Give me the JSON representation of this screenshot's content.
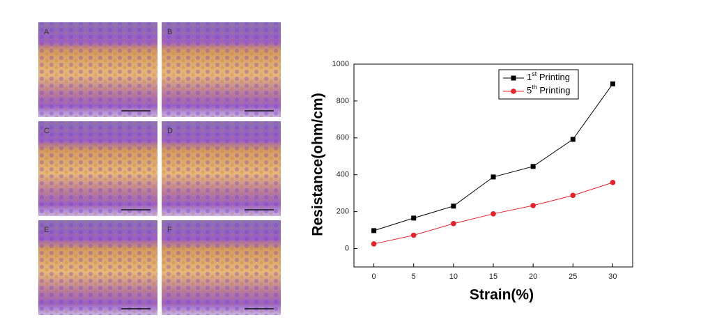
{
  "panels": [
    {
      "label": "A"
    },
    {
      "label": "B"
    },
    {
      "label": "C"
    },
    {
      "label": "D"
    },
    {
      "label": "E"
    },
    {
      "label": "F"
    }
  ],
  "chart_data": {
    "type": "line",
    "x_label": "Strain(%)",
    "y_label": "Resistance(ohm/cm)",
    "x": [
      0,
      5,
      10,
      15,
      20,
      25,
      30
    ],
    "series": [
      {
        "name": "1st Printing",
        "color": "#000000",
        "marker": "square",
        "values": [
          97,
          165,
          230,
          388,
          445,
          592,
          893
        ]
      },
      {
        "name": "5th Printing",
        "color": "#e8202a",
        "marker": "circle",
        "values": [
          25,
          72,
          135,
          188,
          233,
          288,
          358
        ]
      }
    ],
    "xlim": [
      -2.5,
      32.5
    ],
    "xticks": [
      0,
      5,
      10,
      15,
      20,
      25,
      30
    ],
    "ylim": [
      -100,
      1000
    ],
    "yticks": [
      0,
      200,
      400,
      600,
      800,
      1000
    ],
    "legend": "upper right"
  }
}
